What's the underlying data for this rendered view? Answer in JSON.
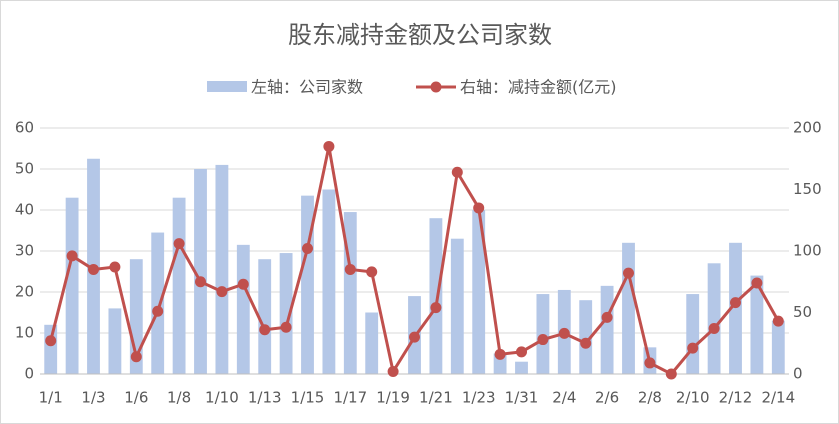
{
  "chart_data": {
    "type": "bar-line",
    "title": "股东减持金额及公司家数",
    "categories": [
      "1/1",
      null,
      "1/3",
      null,
      "1/6",
      null,
      "1/8",
      null,
      "1/10",
      null,
      "1/13",
      null,
      "1/15",
      null,
      "1/17",
      null,
      "1/19",
      null,
      "1/21",
      null,
      "1/23",
      null,
      "1/31",
      null,
      "2/4",
      null,
      "2/6",
      null,
      "2/8",
      null,
      "2/10",
      null,
      "2/12",
      null,
      "2/14"
    ],
    "series": [
      {
        "name": "左轴：公司家数",
        "type": "bar",
        "color": "#b4c7e7",
        "axis": "y",
        "values": [
          12,
          43,
          52.5,
          16,
          28,
          34.5,
          43,
          50,
          51,
          31.5,
          28,
          29.5,
          43.5,
          45,
          39.5,
          15,
          0,
          19,
          38,
          33,
          40,
          5,
          3,
          19.5,
          20.5,
          18,
          21.5,
          32,
          6.5,
          0,
          19.5,
          27,
          32,
          24,
          13
        ]
      },
      {
        "name": "右轴：减持金额(亿元)",
        "type": "line",
        "color": "#c0504d",
        "axis": "y2",
        "values": [
          27,
          96,
          85,
          87,
          14,
          51,
          106,
          75,
          67,
          73,
          36,
          38,
          102,
          185,
          85,
          83,
          2,
          30,
          54,
          164,
          135,
          16,
          18,
          28,
          33,
          25,
          46,
          82,
          9,
          0,
          21,
          37,
          58,
          74,
          43
        ]
      }
    ],
    "ylim": [
      0,
      60
    ],
    "yticks": [
      0,
      10,
      20,
      30,
      40,
      50,
      60
    ],
    "y2lim": [
      0,
      200
    ],
    "y2ticks": [
      0,
      50,
      100,
      150,
      200
    ],
    "grid": true,
    "legend": "top"
  }
}
